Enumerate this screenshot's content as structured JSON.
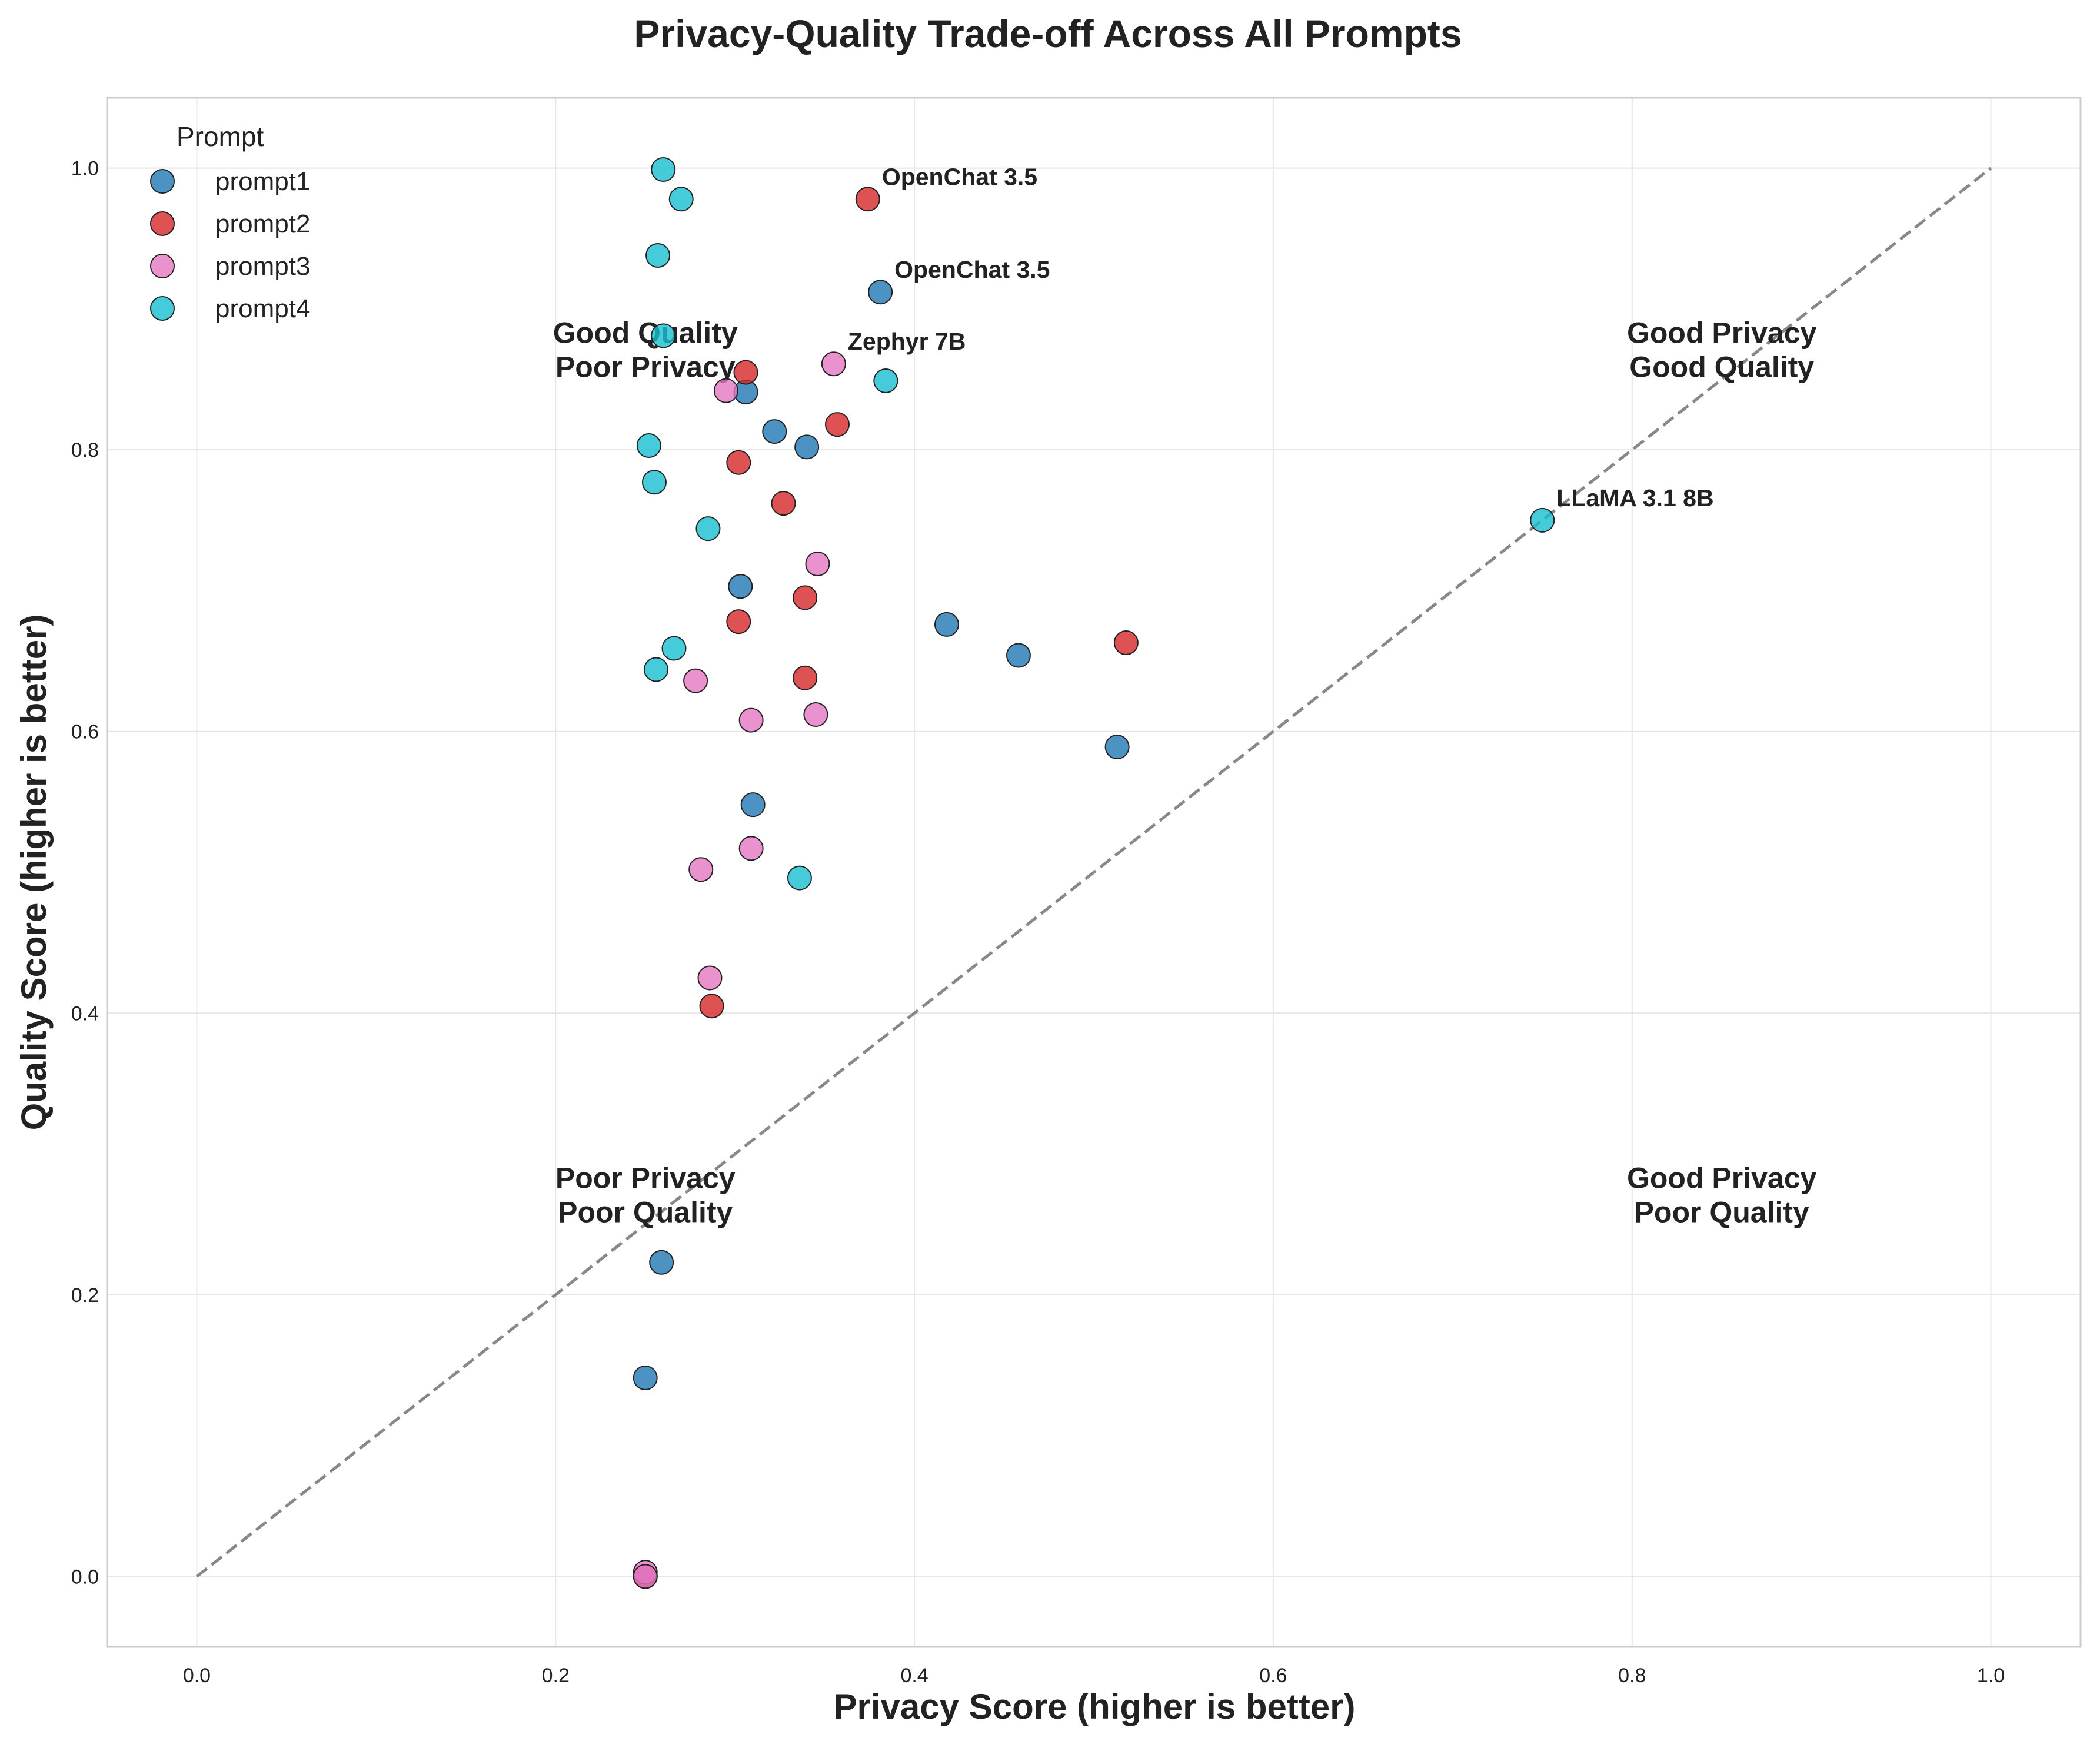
{
  "chart_data": {
    "type": "scatter",
    "title": "Privacy-Quality Trade-off Across All Prompts",
    "xlabel": "Privacy Score (higher is better)",
    "ylabel": "Quality Score (higher is better)",
    "xlim": [
      -0.05,
      1.05
    ],
    "ylim": [
      -0.05,
      1.05
    ],
    "xticks": [
      0.0,
      0.2,
      0.4,
      0.6,
      0.8,
      1.0
    ],
    "yticks": [
      0.0,
      0.2,
      0.4,
      0.6,
      0.8,
      1.0
    ],
    "xtick_labels": [
      "0.0",
      "0.2",
      "0.4",
      "0.6",
      "0.8",
      "1.0"
    ],
    "ytick_labels": [
      "0.0",
      "0.2",
      "0.4",
      "0.6",
      "0.8",
      "1.0"
    ],
    "grid": true,
    "reference_line": {
      "style": "dashed",
      "from": [
        0,
        0
      ],
      "to": [
        1,
        1
      ]
    },
    "legend": {
      "title": "Prompt",
      "placement": "top-left"
    },
    "quadrant_labels": [
      {
        "lines": [
          "Good Quality",
          "Poor Privacy"
        ],
        "x": 0.25,
        "y": 0.875
      },
      {
        "lines": [
          "Good Privacy",
          "Good Quality"
        ],
        "x": 0.85,
        "y": 0.875
      },
      {
        "lines": [
          "Poor Privacy",
          "Poor Quality"
        ],
        "x": 0.25,
        "y": 0.275
      },
      {
        "lines": [
          "Good Privacy",
          "Poor Quality"
        ],
        "x": 0.85,
        "y": 0.275
      }
    ],
    "annotations": [
      {
        "text": "OpenChat 3.5",
        "x": 0.374,
        "y": 0.978
      },
      {
        "text": "OpenChat 3.5",
        "x": 0.381,
        "y": 0.912
      },
      {
        "text": "Zephyr 7B",
        "x": 0.355,
        "y": 0.861
      },
      {
        "text": "LLaMA 3.1 8B",
        "x": 0.75,
        "y": 0.75
      }
    ],
    "series": [
      {
        "name": "prompt1",
        "color": "#1f77b4",
        "points": [
          [
            0.381,
            0.912
          ],
          [
            0.306,
            0.841
          ],
          [
            0.322,
            0.813
          ],
          [
            0.34,
            0.802
          ],
          [
            0.303,
            0.703
          ],
          [
            0.418,
            0.676
          ],
          [
            0.458,
            0.654
          ],
          [
            0.513,
            0.589
          ],
          [
            0.31,
            0.548
          ],
          [
            0.259,
            0.223
          ],
          [
            0.25,
            0.141
          ],
          [
            0.25,
            0.0
          ]
        ]
      },
      {
        "name": "prompt2",
        "color": "#d62728",
        "points": [
          [
            0.374,
            0.978
          ],
          [
            0.306,
            0.855
          ],
          [
            0.357,
            0.818
          ],
          [
            0.302,
            0.791
          ],
          [
            0.327,
            0.762
          ],
          [
            0.339,
            0.695
          ],
          [
            0.302,
            0.678
          ],
          [
            0.518,
            0.663
          ],
          [
            0.339,
            0.638
          ],
          [
            0.287,
            0.405
          ],
          [
            0.25,
            0.0
          ]
        ]
      },
      {
        "name": "prompt3",
        "color": "#e377c2",
        "points": [
          [
            0.355,
            0.861
          ],
          [
            0.295,
            0.842
          ],
          [
            0.346,
            0.719
          ],
          [
            0.278,
            0.636
          ],
          [
            0.345,
            0.612
          ],
          [
            0.309,
            0.608
          ],
          [
            0.309,
            0.517
          ],
          [
            0.281,
            0.502
          ],
          [
            0.286,
            0.425
          ],
          [
            0.25,
            0.003
          ],
          [
            0.25,
            0.0
          ]
        ]
      },
      {
        "name": "prompt4",
        "color": "#17becf",
        "points": [
          [
            0.26,
            0.999
          ],
          [
            0.27,
            0.978
          ],
          [
            0.257,
            0.938
          ],
          [
            0.26,
            0.881
          ],
          [
            0.384,
            0.849
          ],
          [
            0.252,
            0.803
          ],
          [
            0.255,
            0.777
          ],
          [
            0.285,
            0.744
          ],
          [
            0.75,
            0.75
          ],
          [
            0.266,
            0.659
          ],
          [
            0.256,
            0.644
          ],
          [
            0.336,
            0.496
          ]
        ]
      }
    ]
  }
}
